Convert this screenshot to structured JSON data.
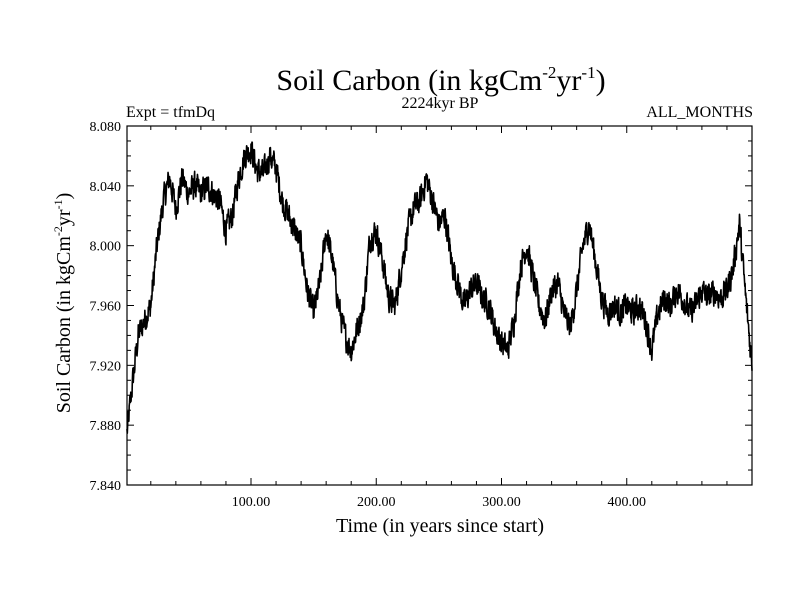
{
  "chart_data": {
    "type": "line",
    "title": "Soil Carbon (in kgCm",
    "title_sup1": "-2",
    "title_mid": "yr",
    "title_sup2": "-1",
    "title_end": ")",
    "subtitle": "2224kyr BP",
    "left_label": "Expt = tfmDq",
    "right_label": "ALL_MONTHS",
    "xlabel": "Time (in years since start)",
    "ylabel_main": "Soil Carbon (in kgCm",
    "ylabel_sup1": "-2",
    "ylabel_mid": "yr",
    "ylabel_sup2": "-1",
    "ylabel_end": ")",
    "xlim": [
      1,
      500
    ],
    "ylim": [
      7.84,
      8.08
    ],
    "xticks": [
      100,
      200,
      300,
      400
    ],
    "xtick_labels": [
      "100.00",
      "200.00",
      "300.00",
      "400.00"
    ],
    "yticks": [
      7.84,
      7.88,
      7.92,
      7.96,
      8.0,
      8.04,
      8.08
    ],
    "ytick_labels": [
      "7.840",
      "7.880",
      "7.920",
      "7.960",
      "8.000",
      "8.040",
      "8.080"
    ],
    "noise_amplitude": 0.008,
    "series": [
      {
        "name": "Soil Carbon",
        "color": "#000000",
        "anchors_x": [
          1,
          5,
          10,
          15,
          20,
          25,
          30,
          35,
          40,
          45,
          50,
          55,
          60,
          65,
          70,
          75,
          80,
          85,
          90,
          95,
          100,
          105,
          110,
          115,
          120,
          125,
          130,
          135,
          140,
          145,
          150,
          155,
          160,
          165,
          170,
          175,
          180,
          185,
          190,
          195,
          200,
          205,
          210,
          215,
          220,
          225,
          230,
          235,
          240,
          245,
          250,
          255,
          260,
          265,
          270,
          275,
          280,
          285,
          290,
          295,
          300,
          305,
          310,
          315,
          320,
          325,
          330,
          335,
          340,
          345,
          350,
          355,
          360,
          365,
          370,
          375,
          380,
          385,
          390,
          395,
          400,
          405,
          410,
          415,
          420,
          425,
          430,
          435,
          440,
          445,
          450,
          455,
          460,
          465,
          470,
          475,
          480,
          485,
          490,
          495,
          500
        ],
        "anchors_y": [
          7.875,
          7.905,
          7.94,
          7.95,
          7.96,
          8.0,
          8.03,
          8.045,
          8.025,
          8.045,
          8.035,
          8.04,
          8.035,
          8.04,
          8.035,
          8.03,
          8.01,
          8.02,
          8.045,
          8.06,
          8.065,
          8.05,
          8.048,
          8.06,
          8.052,
          8.03,
          8.02,
          8.01,
          8.0,
          7.97,
          7.955,
          7.975,
          8.01,
          7.99,
          7.96,
          7.94,
          7.93,
          7.945,
          7.96,
          8.005,
          8.01,
          7.99,
          7.965,
          7.96,
          7.985,
          8.01,
          8.025,
          8.03,
          8.045,
          8.03,
          8.015,
          8.02,
          7.99,
          7.975,
          7.96,
          7.97,
          7.975,
          7.965,
          7.96,
          7.945,
          7.935,
          7.93,
          7.95,
          7.985,
          8.0,
          7.98,
          7.96,
          7.95,
          7.97,
          7.975,
          7.955,
          7.945,
          7.97,
          8.0,
          8.015,
          7.99,
          7.965,
          7.955,
          7.96,
          7.955,
          7.96,
          7.955,
          7.96,
          7.95,
          7.93,
          7.955,
          7.965,
          7.96,
          7.97,
          7.965,
          7.955,
          7.96,
          7.97,
          7.965,
          7.97,
          7.965,
          7.97,
          7.985,
          8.015,
          7.965,
          7.92
        ]
      }
    ]
  }
}
